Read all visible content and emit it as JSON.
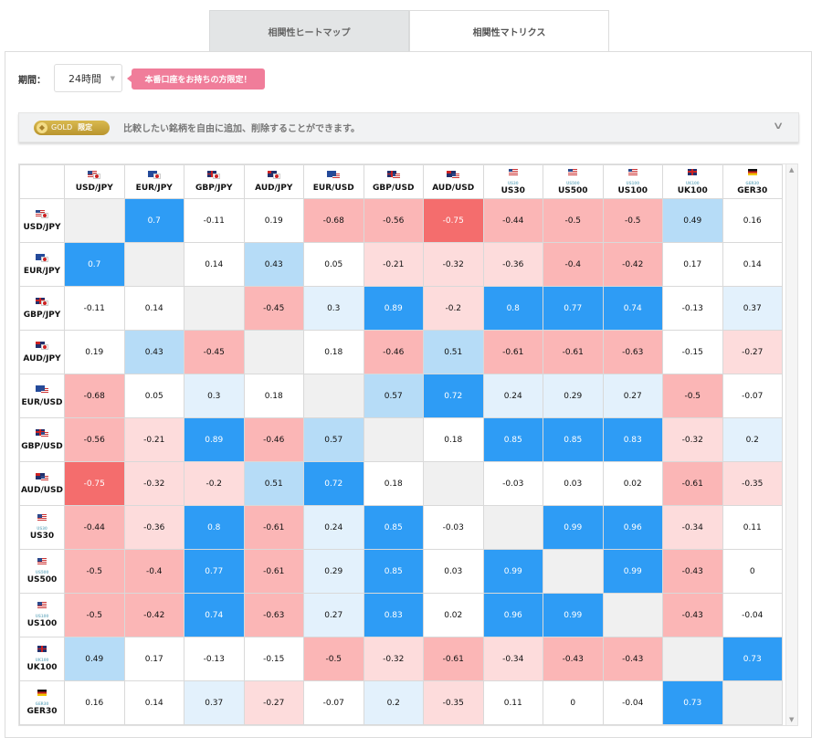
{
  "tabs": [
    {
      "label": "相関性ヒートマップ",
      "active": false
    },
    {
      "label": "相関性マトリクス",
      "active": true
    }
  ],
  "period": {
    "label": "期間：",
    "selected": "24時間"
  },
  "promo": {
    "label": "本番口座をお持ちの方限定！"
  },
  "gold_bar": {
    "badge_word": "GOLD",
    "badge_limited": "限定",
    "text": "比較したい銘柄を自由に追加、削除することができます。",
    "icon": "chevron-down-icon"
  },
  "colors": {
    "strong_positive": "#2e9cf5",
    "mid_positive": "#b6dcf7",
    "weak_positive": "#e3f1fc",
    "weak_negative": "#fddcdc",
    "mid_negative": "#fbb6b6",
    "strong_negative": "#f46d6d",
    "diagonal": "#f0f0f0"
  },
  "matrix": {
    "symbols": [
      {
        "label": "USD/JPY",
        "flag": [
          "us",
          "jp"
        ]
      },
      {
        "label": "EUR/JPY",
        "flag": [
          "eu",
          "jp"
        ]
      },
      {
        "label": "GBP/JPY",
        "flag": [
          "gb",
          "jp"
        ]
      },
      {
        "label": "AUD/JPY",
        "flag": [
          "au",
          "jp"
        ]
      },
      {
        "label": "EUR/USD",
        "flag": [
          "eu",
          "us"
        ]
      },
      {
        "label": "GBP/USD",
        "flag": [
          "gb",
          "us"
        ]
      },
      {
        "label": "AUD/USD",
        "flag": [
          "au",
          "us"
        ]
      },
      {
        "label": "US30",
        "flag": [
          "us"
        ],
        "tag": "US30"
      },
      {
        "label": "US500",
        "flag": [
          "us"
        ],
        "tag": "US500"
      },
      {
        "label": "US100",
        "flag": [
          "us"
        ],
        "tag": "US100"
      },
      {
        "label": "UK100",
        "flag": [
          "gb"
        ],
        "tag": "UK100"
      },
      {
        "label": "GER30",
        "flag": [
          "de"
        ],
        "tag": "GER30"
      }
    ],
    "values": [
      [
        null,
        0.7,
        -0.11,
        0.19,
        -0.68,
        -0.56,
        -0.75,
        -0.44,
        -0.5,
        -0.5,
        0.49,
        0.16
      ],
      [
        0.7,
        null,
        0.14,
        0.43,
        0.05,
        -0.21,
        -0.32,
        -0.36,
        -0.4,
        -0.42,
        0.17,
        0.14
      ],
      [
        -0.11,
        0.14,
        null,
        -0.45,
        0.3,
        0.89,
        -0.2,
        0.8,
        0.77,
        0.74,
        -0.13,
        0.37
      ],
      [
        0.19,
        0.43,
        -0.45,
        null,
        0.18,
        -0.46,
        0.51,
        -0.61,
        -0.61,
        -0.63,
        -0.15,
        -0.27
      ],
      [
        -0.68,
        0.05,
        0.3,
        0.18,
        null,
        0.57,
        0.72,
        0.24,
        0.29,
        0.27,
        -0.5,
        -0.07
      ],
      [
        -0.56,
        -0.21,
        0.89,
        -0.46,
        0.57,
        null,
        0.18,
        0.85,
        0.85,
        0.83,
        -0.32,
        0.2
      ],
      [
        -0.75,
        -0.32,
        -0.2,
        0.51,
        0.72,
        0.18,
        null,
        -0.03,
        0.03,
        0.02,
        -0.61,
        -0.35
      ],
      [
        -0.44,
        -0.36,
        0.8,
        -0.61,
        0.24,
        0.85,
        -0.03,
        null,
        0.99,
        0.96,
        -0.34,
        0.11
      ],
      [
        -0.5,
        -0.4,
        0.77,
        -0.61,
        0.29,
        0.85,
        0.03,
        0.99,
        null,
        0.99,
        -0.43,
        0
      ],
      [
        -0.5,
        -0.42,
        0.74,
        -0.63,
        0.27,
        0.83,
        0.02,
        0.96,
        0.99,
        null,
        -0.43,
        -0.04
      ],
      [
        0.49,
        0.17,
        -0.13,
        -0.15,
        -0.5,
        -0.32,
        -0.61,
        -0.34,
        -0.43,
        -0.43,
        null,
        0.73
      ],
      [
        0.16,
        0.14,
        0.37,
        -0.27,
        -0.07,
        0.2,
        -0.35,
        0.11,
        0,
        -0.04,
        0.73,
        null
      ]
    ]
  }
}
